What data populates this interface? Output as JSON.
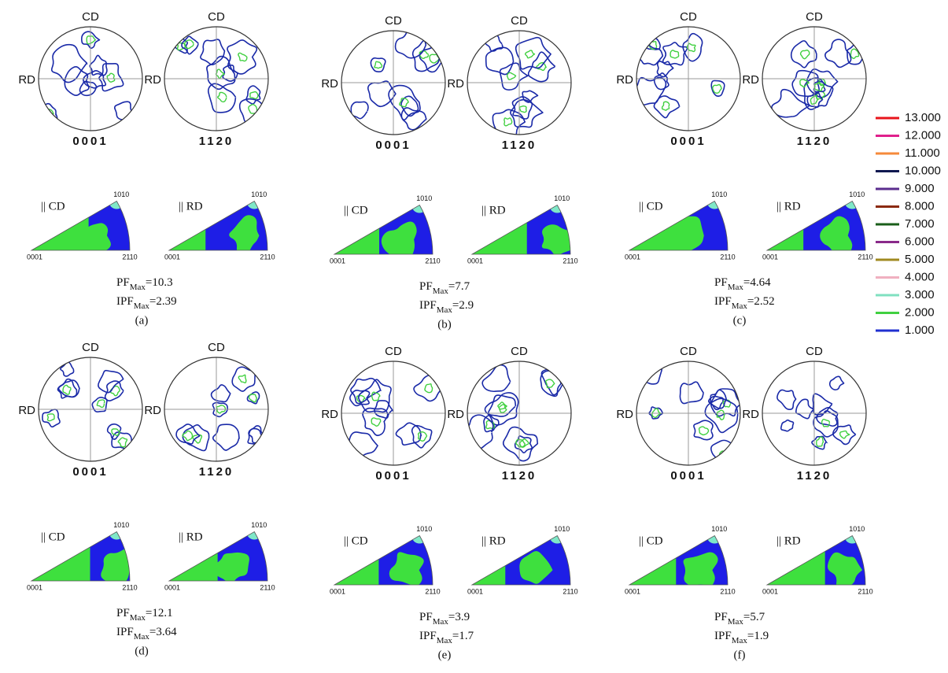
{
  "labels": {
    "cd": "CD",
    "rd": "RD",
    "basal": "0001",
    "prism": "1120",
    "ipf_origin": "0001",
    "ipf_right": "2110",
    "ipf_top": "1010",
    "par_cd": "|| CD",
    "par_rd": "|| RD",
    "pf": "PF",
    "ipf": "IPF",
    "max": "Max",
    "eq": "="
  },
  "panels": [
    {
      "letter": "(a)",
      "pf_max": 10.3,
      "ipf_max": 2.39
    },
    {
      "letter": "(b)",
      "pf_max": 7.7,
      "ipf_max": 2.9
    },
    {
      "letter": "(c)",
      "pf_max": 4.64,
      "ipf_max": 2.52
    },
    {
      "letter": "(d)",
      "pf_max": 12.1,
      "ipf_max": 3.64
    },
    {
      "letter": "(e)",
      "pf_max": 3.9,
      "ipf_max": 1.7
    },
    {
      "letter": "(f)",
      "pf_max": 5.7,
      "ipf_max": 1.9
    }
  ],
  "legend": [
    {
      "label": "13.000",
      "color": "#e8141b"
    },
    {
      "label": "12.000",
      "color": "#e0208c"
    },
    {
      "label": "11.000",
      "color": "#f58a3a"
    },
    {
      "label": "10.000",
      "color": "#101850"
    },
    {
      "label": "9.000",
      "color": "#5b2d8e"
    },
    {
      "label": "8.000",
      "color": "#8b2a10"
    },
    {
      "label": "7.000",
      "color": "#1a5e1a"
    },
    {
      "label": "6.000",
      "color": "#8a2a8a"
    },
    {
      "label": "5.000",
      "color": "#a08a20"
    },
    {
      "label": "4.000",
      "color": "#f0b0c0"
    },
    {
      "label": "3.000",
      "color": "#80e0c0"
    },
    {
      "label": "2.000",
      "color": "#40d040"
    },
    {
      "label": "1.000",
      "color": "#2030d0"
    }
  ]
}
